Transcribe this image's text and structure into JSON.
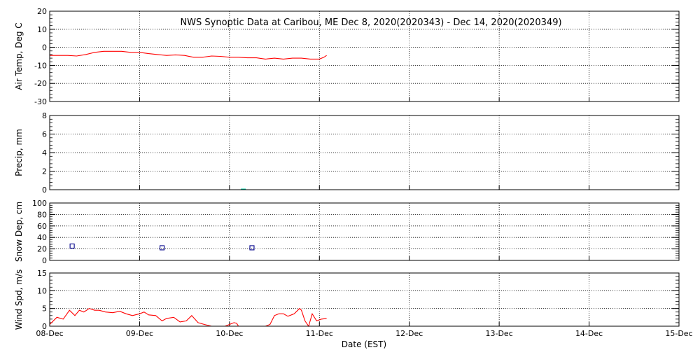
{
  "title": "NWS Synoptic Data at Caribou, ME   Dec  8, 2020(2020343) - Dec 14, 2020(2020349)",
  "x_axis": {
    "label": "Date (EST)",
    "ticks": [
      "08-Dec",
      "09-Dec",
      "10-Dec",
      "11-Dec",
      "12-Dec",
      "13-Dec",
      "14-Dec",
      "15-Dec"
    ],
    "range_days": [
      0,
      7
    ]
  },
  "colors": {
    "temp": "#ff0000",
    "precip": "#00c8a0",
    "snow": "#00008b",
    "wind": "#ff0000",
    "axes": "#000000"
  },
  "chart_data": [
    {
      "type": "line",
      "ylabel": "Air Temp, Deg C",
      "ylim": [
        -30,
        20
      ],
      "yticks": [
        20,
        10,
        0,
        -10,
        -20,
        -30
      ],
      "grid": true,
      "series": [
        {
          "x": [
            0.0,
            0.1,
            0.2,
            0.3,
            0.4,
            0.5,
            0.6,
            0.7,
            0.8,
            0.9,
            1.0,
            1.1,
            1.2,
            1.3,
            1.4,
            1.5,
            1.6,
            1.7,
            1.8,
            1.9,
            2.0,
            2.1,
            2.2,
            2.3,
            2.4,
            2.5,
            2.6,
            2.7,
            2.8,
            2.9,
            3.0,
            3.05,
            3.08
          ],
          "y": [
            -4.5,
            -4.5,
            -4.5,
            -4.8,
            -4.0,
            -2.8,
            -2.2,
            -2.2,
            -2.2,
            -2.8,
            -2.8,
            -3.5,
            -4.0,
            -4.5,
            -4.2,
            -4.5,
            -5.5,
            -5.5,
            -4.8,
            -5.0,
            -5.5,
            -5.5,
            -5.8,
            -5.8,
            -6.5,
            -6.0,
            -6.5,
            -6.0,
            -6.0,
            -6.5,
            -6.5,
            -5.5,
            -4.5
          ]
        }
      ]
    },
    {
      "type": "bar",
      "ylabel": "Precip, mm",
      "ylim": [
        0,
        8
      ],
      "yticks": [
        8,
        6,
        4,
        2,
        0
      ],
      "grid": true,
      "series": [
        {
          "x": [
            2.15
          ],
          "y": [
            0.05
          ]
        }
      ]
    },
    {
      "type": "scatter",
      "ylabel": "Snow Dep, cm",
      "ylim": [
        0,
        100
      ],
      "yticks": [
        100,
        80,
        60,
        40,
        20,
        0
      ],
      "grid": true,
      "series": [
        {
          "x": [
            0.25,
            1.25,
            2.25
          ],
          "y": [
            25,
            22,
            22
          ]
        }
      ]
    },
    {
      "type": "line",
      "ylabel": "Wind Spd, m/s",
      "ylim": [
        0,
        15
      ],
      "yticks": [
        15,
        10,
        5,
        0
      ],
      "grid": true,
      "series": [
        {
          "x": [
            0.0,
            0.08,
            0.15,
            0.22,
            0.28,
            0.33,
            0.38,
            0.44,
            0.5,
            0.55,
            0.62,
            0.7,
            0.78,
            0.85,
            0.92,
            1.0,
            1.05,
            1.1,
            1.18,
            1.25,
            1.3,
            1.38,
            1.45,
            1.52,
            1.58,
            1.65,
            1.72,
            1.8,
            1.85,
            1.88,
            1.95,
            2.0,
            2.05,
            2.08,
            2.1,
            2.2,
            2.3,
            2.4,
            2.45,
            2.5,
            2.55,
            2.6,
            2.65,
            2.72,
            2.78,
            2.8,
            2.84,
            2.88,
            2.92,
            2.97,
            3.02,
            3.08
          ],
          "y": [
            0.5,
            2.5,
            2.0,
            4.5,
            3.0,
            4.5,
            4.0,
            5.0,
            4.5,
            4.5,
            4.0,
            3.8,
            4.2,
            3.5,
            3.0,
            3.5,
            4.0,
            3.2,
            3.0,
            1.5,
            2.2,
            2.5,
            1.2,
            1.5,
            3.0,
            1.0,
            0.5,
            0.0,
            0.0,
            0.0,
            0.0,
            0.5,
            1.0,
            0.8,
            0.0,
            0.0,
            0.0,
            0.0,
            0.5,
            3.0,
            3.5,
            3.5,
            2.8,
            3.5,
            5.0,
            4.5,
            1.5,
            0.0,
            3.5,
            1.5,
            2.0,
            2.2
          ]
        }
      ]
    }
  ]
}
